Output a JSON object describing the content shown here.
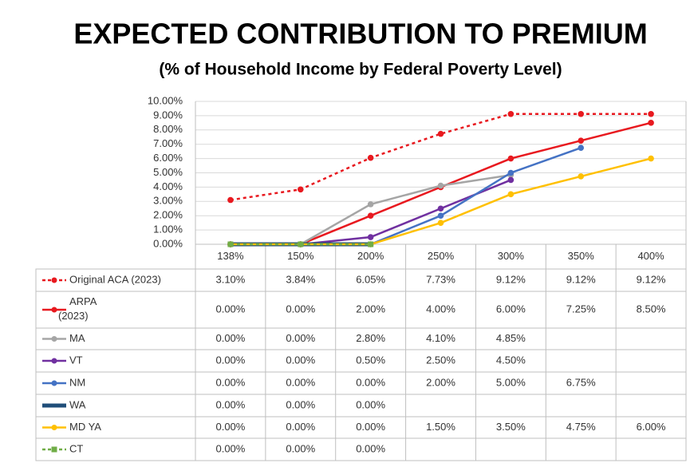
{
  "chart_data": {
    "type": "line",
    "title": "EXPECTED CONTRIBUTION TO PREMIUM",
    "subtitle": "(% of Household Income by Federal Poverty Level)",
    "categories": [
      "138%",
      "150%",
      "200%",
      "250%",
      "300%",
      "350%",
      "400%"
    ],
    "ylim": [
      0,
      10
    ],
    "yticks": [
      {
        "value": 0,
        "label": "0.00%"
      },
      {
        "value": 1,
        "label": "1.00%"
      },
      {
        "value": 2,
        "label": "2.00%"
      },
      {
        "value": 3,
        "label": "3.00%"
      },
      {
        "value": 4,
        "label": "4.00%"
      },
      {
        "value": 5,
        "label": "5.00%"
      },
      {
        "value": 6,
        "label": "6.00%"
      },
      {
        "value": 7,
        "label": "7.00%"
      },
      {
        "value": 8,
        "label": "8.00%"
      },
      {
        "value": 9,
        "label": "9.00%"
      },
      {
        "value": 10,
        "label": "10.00%"
      }
    ],
    "grid": true,
    "series": [
      {
        "name": "Original ACA (2023)",
        "color": "#e8191f",
        "style": "dashed",
        "marker": "circle",
        "values": [
          3.1,
          3.84,
          6.05,
          7.73,
          9.12,
          9.12,
          9.12
        ],
        "value_labels": [
          "3.10%",
          "3.84%",
          "6.05%",
          "7.73%",
          "9.12%",
          "9.12%",
          "9.12%"
        ]
      },
      {
        "name": "ARPA (2023)",
        "color": "#e8191f",
        "style": "solid",
        "marker": "circle",
        "values": [
          0,
          0,
          2,
          4,
          6,
          7.25,
          8.5
        ],
        "value_labels": [
          "0.00%",
          "0.00%",
          "2.00%",
          "4.00%",
          "6.00%",
          "7.25%",
          "8.50%"
        ]
      },
      {
        "name": "MA",
        "color": "#a5a5a5",
        "style": "solid",
        "marker": "circle",
        "values": [
          0,
          0,
          2.8,
          4.1,
          4.85,
          null,
          null
        ],
        "value_labels": [
          "0.00%",
          "0.00%",
          "2.80%",
          "4.10%",
          "4.85%",
          null,
          null
        ]
      },
      {
        "name": "VT",
        "color": "#7030a0",
        "style": "solid",
        "marker": "circle",
        "values": [
          0,
          0,
          0.5,
          2.5,
          4.5,
          null,
          null
        ],
        "value_labels": [
          "0.00%",
          "0.00%",
          "0.50%",
          "2.50%",
          "4.50%",
          null,
          null
        ]
      },
      {
        "name": "NM",
        "color": "#4472c4",
        "style": "solid",
        "marker": "circle",
        "values": [
          0,
          0,
          0,
          2,
          5,
          6.75,
          null
        ],
        "value_labels": [
          "0.00%",
          "0.00%",
          "0.00%",
          "2.00%",
          "5.00%",
          "6.75%",
          null
        ]
      },
      {
        "name": "WA",
        "color": "#1f4e79",
        "style": "thick",
        "marker": "none",
        "values": [
          0,
          0,
          0,
          null,
          null,
          null,
          null
        ],
        "value_labels": [
          "0.00%",
          "0.00%",
          "0.00%",
          null,
          null,
          null,
          null
        ]
      },
      {
        "name": "MD YA",
        "color": "#ffc000",
        "style": "solid",
        "marker": "circle",
        "values": [
          0,
          0,
          0,
          1.5,
          3.5,
          4.75,
          6
        ],
        "value_labels": [
          "0.00%",
          "0.00%",
          "0.00%",
          "1.50%",
          "3.50%",
          "4.75%",
          "6.00%"
        ]
      },
      {
        "name": "CT",
        "color": "#70ad47",
        "style": "dashed",
        "marker": "square",
        "values": [
          0,
          0,
          0,
          null,
          null,
          null,
          null
        ],
        "value_labels": [
          "0.00%",
          "0.00%",
          "0.00%",
          null,
          null,
          null,
          null
        ]
      }
    ]
  }
}
